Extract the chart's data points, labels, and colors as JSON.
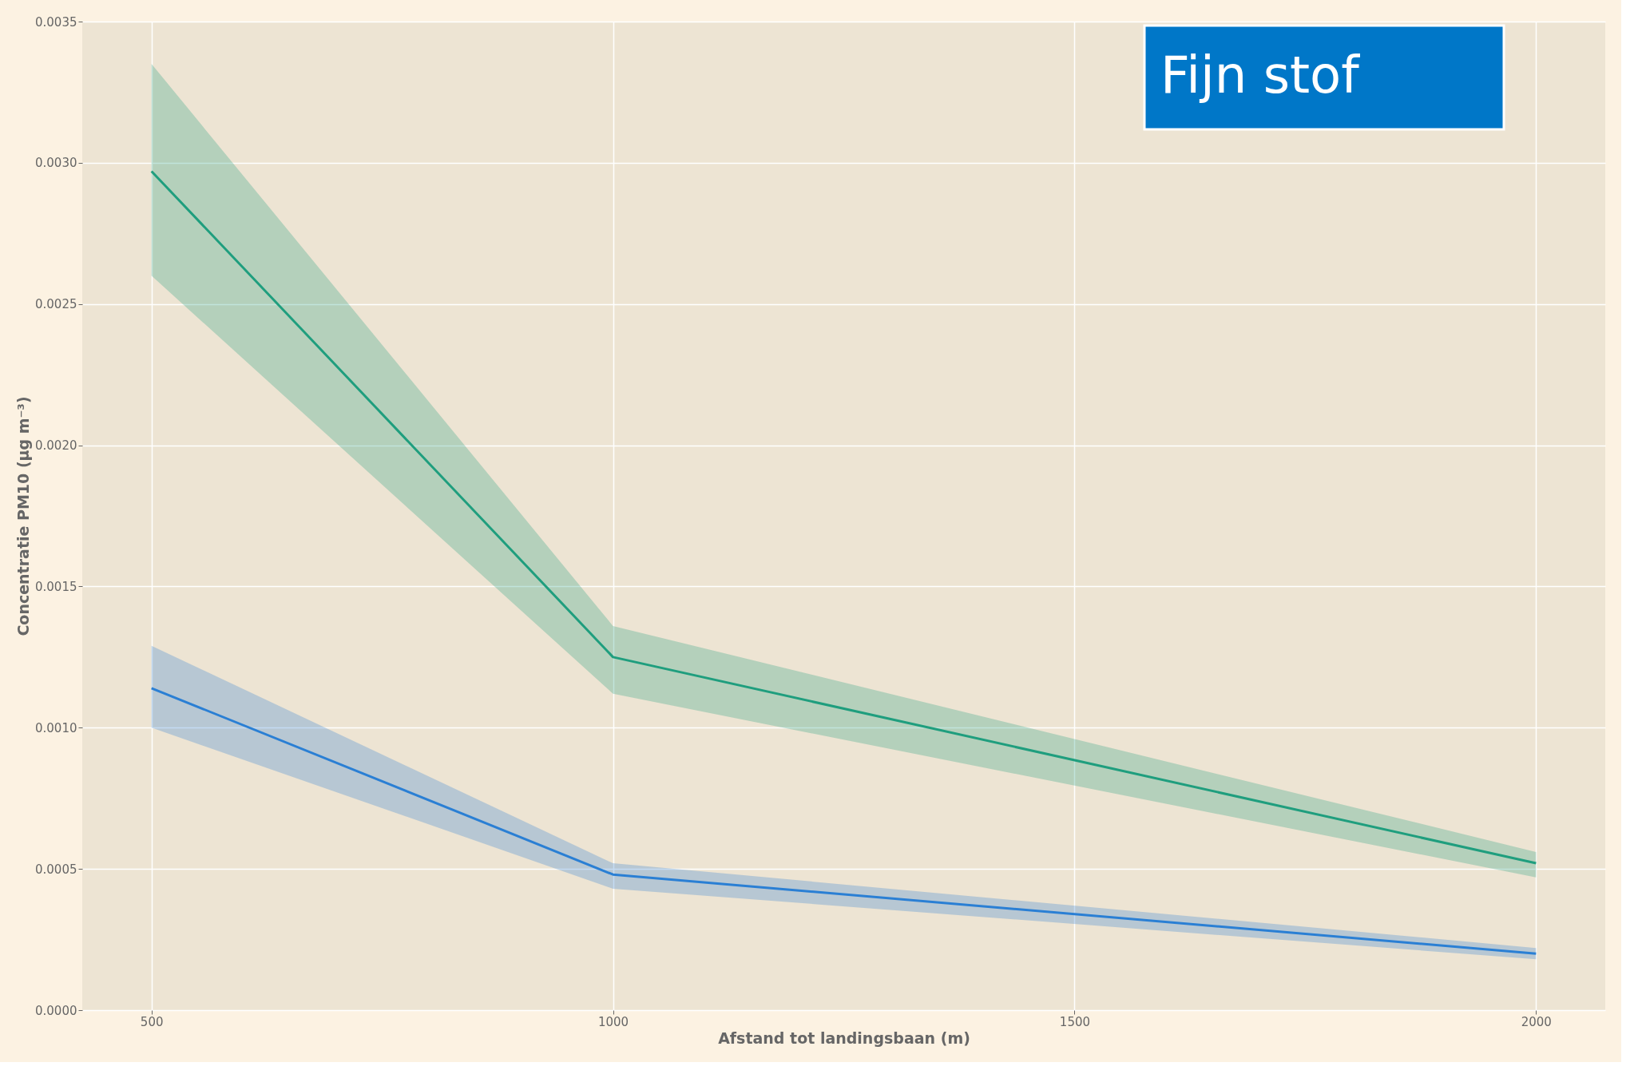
{
  "chart_data": {
    "type": "line",
    "title": "Fijn stof",
    "xlabel": "Afstand tot landingsbaan (m)",
    "ylabel": "Concentratie PM10 (µg m⁻³)",
    "x": [
      500,
      1000,
      2000
    ],
    "series": [
      {
        "color": "#1f9e7e",
        "values": [
          0.00297,
          0.00125,
          0.00052
        ],
        "lower": [
          0.0026,
          0.00112,
          0.00047
        ],
        "upper": [
          0.00335,
          0.00136,
          0.00056
        ]
      },
      {
        "color": "#2a7fd4",
        "values": [
          0.00114,
          0.00048,
          0.0002
        ],
        "lower": [
          0.001,
          0.00043,
          0.00018
        ],
        "upper": [
          0.00129,
          0.00052,
          0.00022
        ]
      }
    ],
    "xlim": [
      425,
      2075
    ],
    "ylim": [
      0,
      0.0035
    ],
    "xticks": [
      500,
      1000,
      1500,
      2000
    ],
    "yticks": [
      {
        "value": 0,
        "label": "0.0000"
      },
      0.0005,
      {
        "value": 0.001,
        "label": "0.0010"
      },
      0.0015,
      {
        "value": 0.002,
        "label": "0.0020"
      },
      0.0025,
      {
        "value": 0.003,
        "label": "0.0030"
      },
      0.0035
    ],
    "grid": true,
    "marker": "none",
    "line_style": "solid"
  }
}
